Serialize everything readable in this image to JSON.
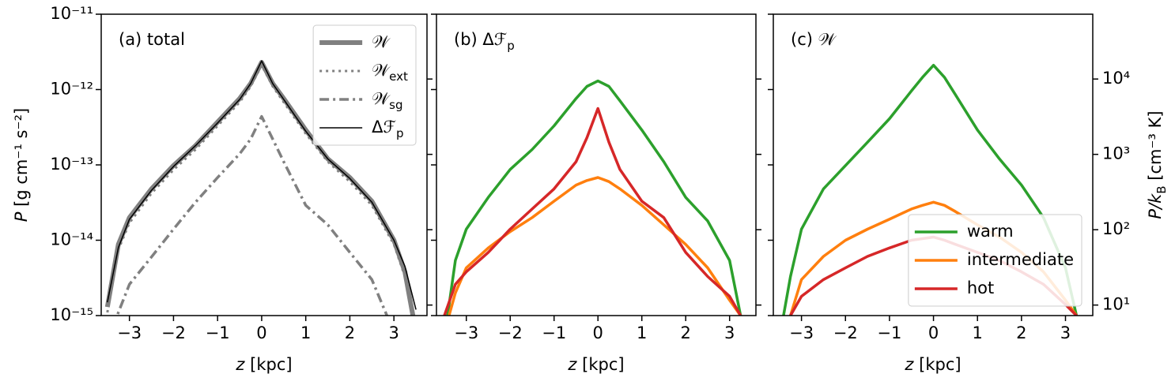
{
  "chart_data": [
    {
      "type": "line",
      "label": [
        {
          "text": "(a) total"
        }
      ],
      "xlabel": [
        {
          "text": "z",
          "style": "italic"
        },
        {
          "text": " [kpc]"
        }
      ],
      "ylabel": [
        {
          "text": "P",
          "style": "italic"
        },
        {
          "text": " [g cm⁻¹ s⁻²]"
        }
      ],
      "x": [
        -3.5,
        -3.25,
        -3,
        -2.5,
        -2,
        -1.5,
        -1,
        -0.5,
        -0.25,
        0,
        0.25,
        0.5,
        1,
        1.5,
        2,
        2.5,
        3,
        3.25,
        3.5
      ],
      "xlim": [
        -3.64,
        3.75
      ],
      "xticks": [
        {
          "value": -3,
          "label": "−3"
        },
        {
          "value": -2,
          "label": "−2"
        },
        {
          "value": -1,
          "label": "−1"
        },
        0,
        1,
        2,
        3
      ],
      "yscale": "log",
      "ylim": [
        1e-15,
        1e-11
      ],
      "yticks": [
        {
          "value": 1e-15,
          "label": "10⁻¹⁵"
        },
        {
          "value": 1e-14,
          "label": "10⁻¹⁴"
        },
        {
          "value": 1e-13,
          "label": "10⁻¹³"
        },
        {
          "value": 1e-12,
          "label": "10⁻¹²"
        },
        {
          "value": 1e-11,
          "label": "10⁻¹¹"
        }
      ],
      "y2lim": [
        7.25,
        72500
      ],
      "y2ticks": [
        10,
        100,
        1000,
        10000
      ],
      "legend": "upper right",
      "series": [
        {
          "name": "𝒲",
          "color": "#808080",
          "style": "thick",
          "values": [
            1.3e-15,
            8.8e-15,
            2e-14,
            4.8e-14,
            9.8e-14,
            1.8e-13,
            3.7e-13,
            7.6e-13,
            1.2e-12,
            2.3e-12,
            1.2e-12,
            7.6e-13,
            2.9e-13,
            1.2e-13,
            6.8e-14,
            3.3e-14,
            1e-14,
            3.8e-15,
            6e-16
          ]
        },
        {
          "name": "𝒲",
          "name_sub": "ext",
          "color": "#808080",
          "style": "dotted",
          "values": [
            1.1e-15,
            7.5e-15,
            1.7e-14,
            4.2e-14,
            8.6e-14,
            1.6e-13,
            3.3e-13,
            6.8e-13,
            1.1e-12,
            2.1e-12,
            1.1e-12,
            6.8e-13,
            2.6e-13,
            1.1e-13,
            6e-14,
            2.9e-14,
            8.8e-15,
            3.3e-15,
            5e-16
          ]
        },
        {
          "name": "𝒲",
          "name_sub": "sg",
          "color": "#808080",
          "style": "dashdot",
          "values": [
            4e-16,
            1.1e-15,
            2.6e-15,
            6e-15,
            1.4e-14,
            3.2e-14,
            6.8e-14,
            1.4e-13,
            2.2e-13,
            4.4e-13,
            2.2e-13,
            1.1e-13,
            2.9e-14,
            1.6e-14,
            6.9e-15,
            3e-15,
            6e-16,
            3e-16,
            2e-16
          ]
        },
        {
          "name": "Δℱ",
          "name_sub": "p",
          "color": "#000000",
          "style": "thin",
          "values": [
            1.5e-15,
            8e-15,
            1.9e-14,
            4.6e-14,
            9.5e-14,
            1.8e-13,
            3.6e-13,
            7.4e-13,
            1.2e-12,
            2.4e-12,
            1.2e-12,
            7.4e-13,
            2.8e-13,
            1.2e-13,
            6.6e-14,
            3.2e-14,
            1e-14,
            4.5e-15,
            1.2e-15
          ]
        }
      ]
    },
    {
      "type": "line",
      "label": [
        {
          "text": "(b) Δℱ"
        },
        {
          "text": "p",
          "style": "sub"
        }
      ],
      "xlabel": [
        {
          "text": "z",
          "style": "italic"
        },
        {
          "text": " [kpc]"
        }
      ],
      "x": [
        -3.5,
        -3.25,
        -3,
        -2.5,
        -2,
        -1.5,
        -1,
        -0.5,
        -0.25,
        0,
        0.25,
        0.5,
        1,
        1.5,
        2,
        2.5,
        3,
        3.25,
        3.5
      ],
      "xlim": [
        -3.68,
        3.6
      ],
      "xticks": [
        {
          "value": -3,
          "label": "−3"
        },
        {
          "value": -2,
          "label": "−2"
        },
        {
          "value": -1,
          "label": "−1"
        },
        0,
        1,
        2,
        3
      ],
      "yscale": "log",
      "ylim": [
        1e-15,
        1e-11
      ],
      "yticks": [
        1e-15,
        1e-14,
        1e-13,
        1e-12,
        1e-11
      ],
      "y2lim": [
        7.25,
        72500
      ],
      "y2ticks": [
        10,
        100,
        1000,
        10000
      ],
      "series": [
        {
          "color": "#2ca02c",
          "style": "solid",
          "values": [
            5e-16,
            5.4e-15,
            1.4e-14,
            3.7e-14,
            8.7e-14,
            1.6e-13,
            3.3e-13,
            7.6e-13,
            1.1e-12,
            1.3e-12,
            1.1e-12,
            7.1e-13,
            2.9e-13,
            1.1e-13,
            3.7e-14,
            1.8e-14,
            5.4e-15,
            1e-15,
            5e-16
          ]
        },
        {
          "color": "#ff7f0e",
          "style": "solid",
          "values": [
            6e-16,
            2e-15,
            4.3e-15,
            7.9e-15,
            1.3e-14,
            2e-14,
            3.3e-14,
            5.4e-14,
            6.2e-14,
            6.8e-14,
            6e-14,
            4.8e-14,
            2.9e-14,
            1.6e-14,
            8.8e-15,
            4.3e-15,
            1.6e-15,
            1e-15,
            5e-16
          ]
        },
        {
          "color": "#d62728",
          "style": "solid",
          "values": [
            1e-15,
            2.6e-15,
            3.8e-15,
            6.9e-15,
            1.4e-14,
            2.6e-14,
            4.8e-14,
            1.1e-13,
            2.3e-13,
            5.6e-13,
            2e-13,
            8.7e-14,
            3.3e-14,
            2e-14,
            6.9e-15,
            3.3e-15,
            1.8e-15,
            1e-15,
            5e-16
          ]
        }
      ]
    },
    {
      "type": "line",
      "label": [
        {
          "text": "(c) 𝒲"
        }
      ],
      "xlabel": [
        {
          "text": "z",
          "style": "italic"
        },
        {
          "text": " [kpc]"
        }
      ],
      "y2label": [
        {
          "text": "P/k",
          "style": "italic"
        },
        {
          "text": "B",
          "style": "sub"
        },
        {
          "text": " [cm⁻³ K]"
        }
      ],
      "x": [
        -3.5,
        -3.25,
        -3,
        -2.5,
        -2,
        -1.5,
        -1,
        -0.5,
        -0.25,
        0,
        0.25,
        0.5,
        1,
        1.5,
        2,
        2.5,
        3,
        3.25,
        3.5
      ],
      "xlim": [
        -3.64,
        3.62
      ],
      "xticks": [
        {
          "value": -3,
          "label": "−3"
        },
        {
          "value": -2,
          "label": "−2"
        },
        {
          "value": -1,
          "label": "−1"
        },
        0,
        1,
        2,
        3
      ],
      "yscale": "log",
      "ylim": [
        1e-15,
        1e-11
      ],
      "yticks": [
        1e-15,
        1e-14,
        1e-13,
        1e-12,
        1e-11
      ],
      "y2lim": [
        7.25,
        72500
      ],
      "y2ticks": [
        {
          "value": 10,
          "label": "10¹"
        },
        {
          "value": 100,
          "label": "10²"
        },
        {
          "value": 1000,
          "label": "10³"
        },
        {
          "value": 10000,
          "label": "10⁴"
        }
      ],
      "legend": "lower right",
      "series": [
        {
          "name": "warm",
          "color": "#2ca02c",
          "style": "solid",
          "values": [
            5e-16,
            3.3e-15,
            1.4e-14,
            4.8e-14,
            9.8e-14,
            2e-13,
            4.1e-13,
            9.6e-13,
            1.45e-12,
            2.1e-12,
            1.45e-12,
            8.5e-13,
            2.9e-13,
            1.2e-13,
            5.4e-14,
            2e-14,
            4.3e-15,
            1e-15,
            4e-16
          ]
        },
        {
          "name": "intermediate",
          "color": "#ff7f0e",
          "style": "solid",
          "values": [
            4e-16,
            1e-15,
            3e-15,
            6.1e-15,
            1e-14,
            1.4e-14,
            1.9e-14,
            2.6e-14,
            2.9e-14,
            3.2e-14,
            2.9e-14,
            2.4e-14,
            1.6e-14,
            1.1e-14,
            6.9e-15,
            3.8e-15,
            1.6e-15,
            1e-15,
            4e-16
          ]
        },
        {
          "name": "hot",
          "color": "#d62728",
          "style": "solid",
          "values": [
            4e-16,
            1e-15,
            1.8e-15,
            3e-15,
            4.3e-15,
            6.1e-15,
            7.9e-15,
            1e-14,
            1.05e-14,
            1.1e-14,
            1e-14,
            8.8e-15,
            6.9e-15,
            5.4e-15,
            3.8e-15,
            2.6e-15,
            1.4e-15,
            1e-15,
            4e-16
          ]
        }
      ]
    }
  ]
}
